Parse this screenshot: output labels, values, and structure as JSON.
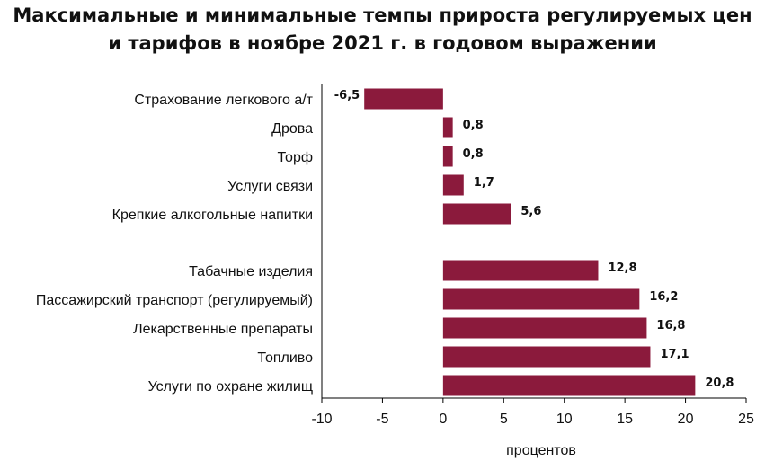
{
  "chart_data": {
    "type": "bar",
    "orientation": "horizontal",
    "title_lines": [
      "Максимальные и минимальные темпы прироста регулируемых цен",
      "и тарифов в ноябре 2021 г. в годовом выражении"
    ],
    "categories": [
      "Страхование легкового а/т",
      "Дрова",
      "Торф",
      "Услуги связи",
      "Крепкие алкогольные напитки",
      "Табачные изделия",
      "Пассажирский транспорт (регулируемый)",
      "Лекарственные препараты",
      "Топливо",
      "Услуги по охране жилищ"
    ],
    "values": [
      -6.5,
      0.8,
      0.8,
      1.7,
      5.6,
      12.8,
      16.2,
      16.8,
      17.1,
      20.8
    ],
    "value_labels": [
      "-6,5",
      "0,8",
      "0,8",
      "1,7",
      "5,6",
      "12,8",
      "16,2",
      "16,8",
      "17,1",
      "20,8"
    ],
    "xlabel": "процентов",
    "ylabel": "",
    "xlim": [
      -10,
      25
    ],
    "xticks": [
      -10,
      -5,
      0,
      5,
      10,
      15,
      20,
      25
    ],
    "xtick_labels": [
      "-10",
      "-5",
      "0",
      "5",
      "10",
      "15",
      "20",
      "25"
    ],
    "bar_color": "#8b1a3c",
    "axis_color": "#000000",
    "grid": false,
    "legend": "none"
  }
}
